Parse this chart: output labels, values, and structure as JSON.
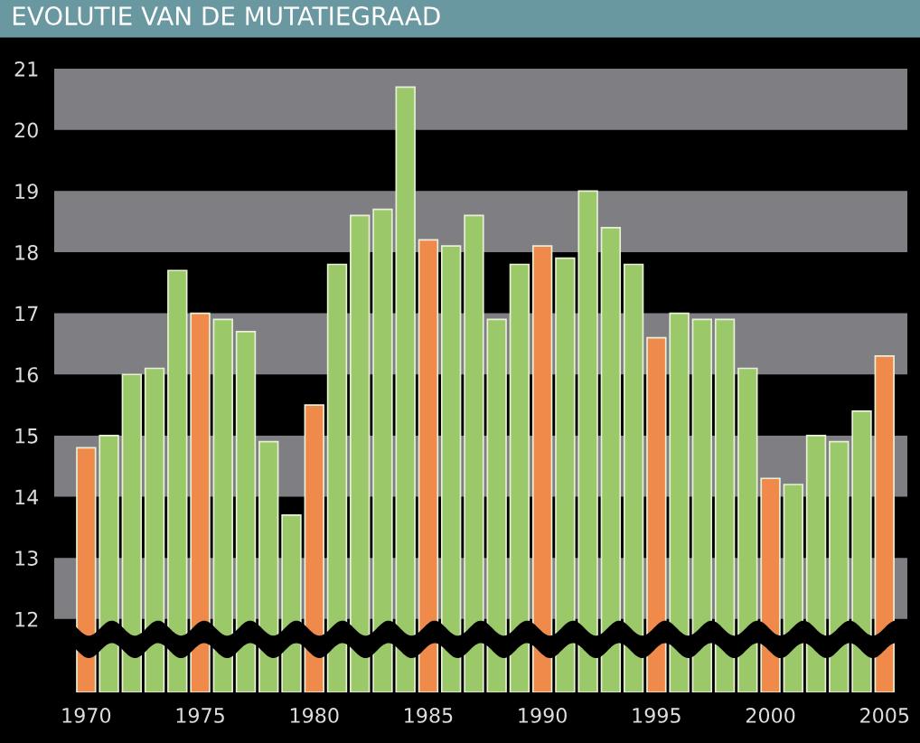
{
  "chart_data": {
    "type": "bar",
    "title": "EVOLUTIE VAN DE MUTATIEGRAAD",
    "x": [
      1970,
      1971,
      1972,
      1973,
      1974,
      1975,
      1976,
      1977,
      1978,
      1979,
      1980,
      1981,
      1982,
      1983,
      1984,
      1985,
      1986,
      1987,
      1988,
      1989,
      1990,
      1991,
      1992,
      1993,
      1994,
      1995,
      1996,
      1997,
      1998,
      1999,
      2000,
      2001,
      2002,
      2003,
      2004,
      2005
    ],
    "values": [
      14.8,
      15.0,
      16.0,
      16.1,
      17.7,
      17.0,
      16.9,
      16.7,
      14.9,
      13.7,
      15.5,
      17.8,
      18.6,
      18.7,
      20.7,
      18.2,
      18.1,
      18.6,
      16.9,
      17.8,
      18.1,
      17.9,
      19.0,
      18.4,
      17.8,
      16.6,
      17.0,
      16.9,
      16.9,
      16.1,
      14.3,
      14.2,
      15.0,
      14.9,
      15.4,
      16.3
    ],
    "colors": [
      "#f08a4b",
      "#9bc96a",
      "#9bc96a",
      "#9bc96a",
      "#9bc96a",
      "#f08a4b",
      "#9bc96a",
      "#9bc96a",
      "#9bc96a",
      "#9bc96a",
      "#f08a4b",
      "#9bc96a",
      "#9bc96a",
      "#9bc96a",
      "#9bc96a",
      "#f08a4b",
      "#9bc96a",
      "#9bc96a",
      "#9bc96a",
      "#9bc96a",
      "#f08a4b",
      "#9bc96a",
      "#9bc96a",
      "#9bc96a",
      "#9bc96a",
      "#f08a4b",
      "#9bc96a",
      "#9bc96a",
      "#9bc96a",
      "#9bc96a",
      "#f08a4b",
      "#9bc96a",
      "#9bc96a",
      "#9bc96a",
      "#9bc96a",
      "#f08a4b"
    ],
    "xlim": [
      1968.6,
      2006.0
    ],
    "xticks": [
      1970,
      1975,
      1980,
      1985,
      1990,
      1995,
      2000,
      2005
    ],
    "ylim": [
      10.8,
      21
    ],
    "yticks": [
      12,
      13,
      14,
      15,
      16,
      17,
      18,
      19,
      20,
      21
    ],
    "bands": [
      {
        "axis": "y",
        "from": 12,
        "to": 13,
        "color": "#7f7e83"
      },
      {
        "axis": "y",
        "from": 14,
        "to": 15,
        "color": "#7f7e83"
      },
      {
        "axis": "y",
        "from": 16,
        "to": 17,
        "color": "#7f7e83"
      },
      {
        "axis": "y",
        "from": 18,
        "to": 19,
        "color": "#7f7e83"
      },
      {
        "axis": "y",
        "from": 20,
        "to": 21,
        "color": "#7f7e83"
      }
    ],
    "legend": false
  }
}
